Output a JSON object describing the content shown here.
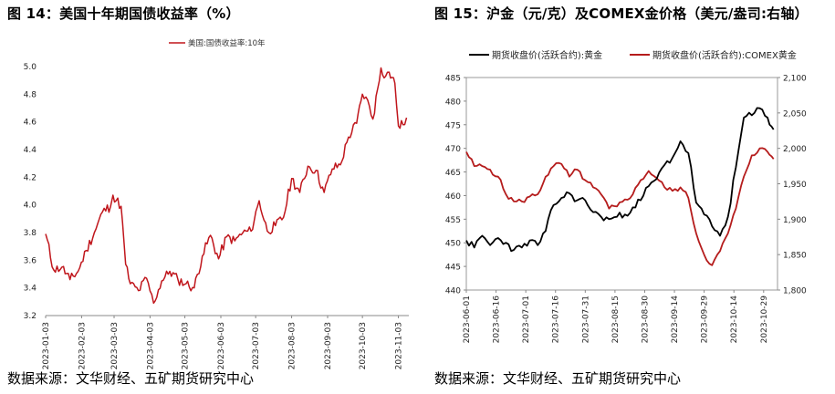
{
  "left": {
    "title": "图 14：美国十年期国债收益率（%）",
    "source": "数据来源：文华财经、五矿期货研究中心",
    "chart_data": {
      "type": "line",
      "title": "美国十年期国债收益率（%）",
      "xlabel": "",
      "ylabel": "",
      "ylim": [
        3.2,
        5.0
      ],
      "yticks": [
        "3.2",
        "3.4",
        "3.6",
        "3.8",
        "4.0",
        "4.2",
        "4.4",
        "4.6",
        "4.8",
        "5.0"
      ],
      "xticks": [
        "2023-01-03",
        "2023-02-03",
        "2023-03-03",
        "2023-04-03",
        "2023-05-03",
        "2023-06-03",
        "2023-07-03",
        "2023-08-03",
        "2023-09-03",
        "2023-10-03",
        "2023-11-03"
      ],
      "legend_position": "top-left",
      "grid": false,
      "series": [
        {
          "name": "美国:国债收益率:10年",
          "color": "#c0161c",
          "x": [
            "2023-01-03",
            "2023-01-10",
            "2023-01-17",
            "2023-01-24",
            "2023-01-31",
            "2023-02-07",
            "2023-02-14",
            "2023-02-21",
            "2023-02-28",
            "2023-03-02",
            "2023-03-09",
            "2023-03-13",
            "2023-03-17",
            "2023-03-24",
            "2023-03-31",
            "2023-04-06",
            "2023-04-13",
            "2023-04-20",
            "2023-04-27",
            "2023-05-04",
            "2023-05-11",
            "2023-05-18",
            "2023-05-25",
            "2023-06-01",
            "2023-06-08",
            "2023-06-15",
            "2023-06-22",
            "2023-06-29",
            "2023-07-06",
            "2023-07-13",
            "2023-07-20",
            "2023-07-27",
            "2023-08-03",
            "2023-08-10",
            "2023-08-17",
            "2023-08-24",
            "2023-08-31",
            "2023-09-07",
            "2023-09-14",
            "2023-09-21",
            "2023-09-28",
            "2023-10-03",
            "2023-10-06",
            "2023-10-12",
            "2023-10-19",
            "2023-10-23",
            "2023-10-26",
            "2023-10-31",
            "2023-11-03",
            "2023-11-07",
            "2023-11-10"
          ],
          "values": [
            3.79,
            3.53,
            3.55,
            3.46,
            3.52,
            3.67,
            3.8,
            3.95,
            3.99,
            4.07,
            3.99,
            3.57,
            3.43,
            3.38,
            3.47,
            3.29,
            3.45,
            3.52,
            3.46,
            3.43,
            3.4,
            3.63,
            3.78,
            3.61,
            3.77,
            3.74,
            3.8,
            3.81,
            4.03,
            3.81,
            3.85,
            3.91,
            4.19,
            4.09,
            4.28,
            4.25,
            4.09,
            4.26,
            4.29,
            4.49,
            4.59,
            4.8,
            4.78,
            4.62,
            4.99,
            4.93,
            4.96,
            4.88,
            4.57,
            4.58,
            4.63
          ]
        }
      ]
    }
  },
  "right": {
    "title": "图 15：沪金（元/克）及COMEX金价格（美元/盎司:右轴）",
    "source": "数据来源：文华财经、五矿期货研究中心",
    "chart_data": {
      "type": "line",
      "title": "沪金（元/克）及COMEX金价格（美元/盎司:右轴）",
      "xlabel": "",
      "ylabel": "",
      "ylim": [
        440,
        485
      ],
      "ylim_right": [
        1800,
        2100
      ],
      "yticks": [
        "440",
        "445",
        "450",
        "455",
        "460",
        "465",
        "470",
        "475",
        "480",
        "485"
      ],
      "yticks_right": [
        "1,800",
        "1,850",
        "1,900",
        "1,950",
        "2,000",
        "2,050",
        "2,100"
      ],
      "xticks": [
        "2023-06-01",
        "2023-06-16",
        "2023-07-01",
        "2023-07-16",
        "2023-07-31",
        "2023-08-15",
        "2023-08-30",
        "2023-09-14",
        "2023-09-29",
        "2023-10-14",
        "2023-10-29"
      ],
      "legend_position": "top",
      "grid": false,
      "series": [
        {
          "name": "期货收盘价(活跃合约):黄金",
          "color": "#000000",
          "axis": "left",
          "x": [
            "2023-06-01",
            "2023-06-05",
            "2023-06-09",
            "2023-06-13",
            "2023-06-17",
            "2023-06-21",
            "2023-06-25",
            "2023-06-29",
            "2023-07-03",
            "2023-07-07",
            "2023-07-11",
            "2023-07-15",
            "2023-07-19",
            "2023-07-23",
            "2023-07-27",
            "2023-07-31",
            "2023-08-04",
            "2023-08-08",
            "2023-08-12",
            "2023-08-16",
            "2023-08-20",
            "2023-08-24",
            "2023-08-28",
            "2023-09-01",
            "2023-09-05",
            "2023-09-09",
            "2023-09-13",
            "2023-09-17",
            "2023-09-21",
            "2023-09-25",
            "2023-09-29",
            "2023-10-03",
            "2023-10-07",
            "2023-10-11",
            "2023-10-15",
            "2023-10-19",
            "2023-10-23",
            "2023-10-27",
            "2023-10-31",
            "2023-11-03"
          ],
          "values": [
            450.5,
            449.0,
            451.5,
            449.5,
            451.0,
            450.0,
            448.5,
            449.0,
            450.5,
            449.5,
            452.5,
            458.0,
            459.5,
            460.5,
            459.0,
            459.0,
            456.5,
            455.5,
            455.0,
            455.5,
            456.0,
            457.5,
            459.0,
            462.0,
            463.5,
            466.5,
            468.0,
            471.5,
            469.0,
            458.5,
            456.0,
            453.5,
            451.5,
            455.5,
            466.0,
            476.5,
            477.0,
            478.5,
            476.5,
            474.0
          ]
        },
        {
          "name": "期货收盘价(活跃合约):COMEX黄金",
          "color": "#b51c1c",
          "axis": "right",
          "x": [
            "2023-06-01",
            "2023-06-05",
            "2023-06-09",
            "2023-06-13",
            "2023-06-17",
            "2023-06-21",
            "2023-06-25",
            "2023-06-29",
            "2023-07-03",
            "2023-07-07",
            "2023-07-11",
            "2023-07-15",
            "2023-07-19",
            "2023-07-23",
            "2023-07-27",
            "2023-07-31",
            "2023-08-04",
            "2023-08-08",
            "2023-08-12",
            "2023-08-16",
            "2023-08-20",
            "2023-08-24",
            "2023-08-28",
            "2023-09-01",
            "2023-09-05",
            "2023-09-09",
            "2023-09-13",
            "2023-09-17",
            "2023-09-21",
            "2023-09-25",
            "2023-09-29",
            "2023-10-03",
            "2023-10-07",
            "2023-10-11",
            "2023-10-15",
            "2023-10-19",
            "2023-10-23",
            "2023-10-27",
            "2023-10-31",
            "2023-11-03"
          ],
          "values": [
            1995,
            1975,
            1975,
            1970,
            1960,
            1935,
            1925,
            1925,
            1932,
            1935,
            1960,
            1975,
            1978,
            1960,
            1970,
            1955,
            1945,
            1935,
            1915,
            1918,
            1928,
            1935,
            1955,
            1968,
            1958,
            1945,
            1940,
            1945,
            1930,
            1880,
            1850,
            1835,
            1855,
            1880,
            1915,
            1960,
            1990,
            2000,
            1995,
            1985
          ]
        }
      ]
    }
  }
}
